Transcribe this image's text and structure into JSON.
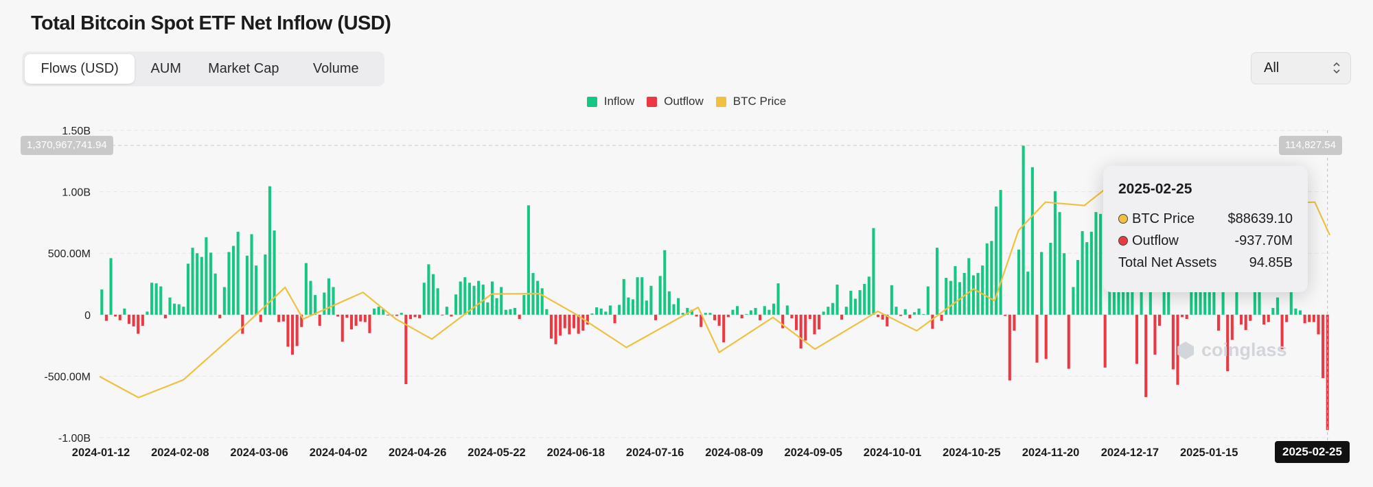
{
  "page": {
    "title": "Total Bitcoin Spot ETF Net Inflow (USD)"
  },
  "tabs": [
    {
      "label": "Flows (USD)",
      "active": true
    },
    {
      "label": "AUM",
      "active": false
    },
    {
      "label": "Market Cap",
      "active": false
    },
    {
      "label": "Volume",
      "active": false
    }
  ],
  "range_select": {
    "value": "All"
  },
  "colors": {
    "inflow": "#16c784",
    "outflow": "#ea3943",
    "btc_price": "#f0c040",
    "gridline": "#e6e6e6"
  },
  "crosshair": {
    "left_value": "1,370,967,741.94",
    "right_value": "114,827.54",
    "date": "2025-02-25"
  },
  "tooltip": {
    "date": "2025-02-25",
    "rows": [
      {
        "label": "BTC Price",
        "value": "$88639.10",
        "dot_color": "#f0c040"
      },
      {
        "label": "Outflow",
        "value": "-937.70M",
        "dot_color": "#ea3943"
      },
      {
        "label": "Total Net Assets",
        "value": "94.85B"
      }
    ]
  },
  "watermark": "coinglass",
  "chart_data": {
    "type": "bar",
    "legend": [
      "Inflow",
      "Outflow",
      "BTC Price"
    ],
    "legend_position": "top-center",
    "grid": true,
    "y_tick_labels": [
      "1.50B",
      "1.00B",
      "500.00M",
      "0",
      "-500.00M",
      "-1.00B"
    ],
    "ylim": [
      -1000000000,
      1500000000
    ],
    "x_tick_labels": [
      "2024-01-12",
      "2024-02-08",
      "2024-03-06",
      "2024-04-02",
      "2024-04-26",
      "2024-05-22",
      "2024-06-18",
      "2024-07-16",
      "2024-08-09",
      "2024-09-05",
      "2024-10-01",
      "2024-10-25",
      "2024-11-20",
      "2024-12-17",
      "2025-01-15",
      "2025-02-25"
    ],
    "x_range": [
      "2024-01-11",
      "2025-02-25"
    ],
    "flows_musd": [
      205,
      -50,
      460,
      -15,
      -45,
      50,
      -75,
      -95,
      -155,
      -90,
      25,
      260,
      255,
      230,
      -30,
      140,
      90,
      85,
      65,
      415,
      545,
      500,
      470,
      630,
      505,
      335,
      -30,
      225,
      510,
      560,
      675,
      -155,
      480,
      655,
      400,
      -60,
      490,
      1045,
      685,
      -60,
      -55,
      -260,
      -325,
      -255,
      -100,
      420,
      275,
      160,
      -90,
      180,
      295,
      225,
      -15,
      -220,
      -25,
      -120,
      -90,
      -55,
      -60,
      -150,
      50,
      65,
      45,
      -5,
      0,
      -10,
      15,
      -565,
      -35,
      -20,
      -30,
      260,
      410,
      330,
      215,
      -5,
      65,
      -15,
      165,
      270,
      305,
      260,
      235,
      275,
      245,
      100,
      270,
      135,
      225,
      40,
      45,
      55,
      -35,
      160,
      890,
      340,
      275,
      215,
      45,
      -195,
      -240,
      -170,
      -110,
      -160,
      -110,
      -155,
      -130,
      -80,
      10,
      60,
      50,
      25,
      75,
      -70,
      80,
      290,
      140,
      125,
      305,
      305,
      115,
      235,
      -45,
      315,
      525,
      190,
      85,
      135,
      15,
      55,
      40,
      -15,
      -100,
      15,
      15,
      -45,
      -90,
      -225,
      -20,
      40,
      70,
      -30,
      5,
      35,
      55,
      -45,
      70,
      40,
      90,
      255,
      -110,
      75,
      -30,
      -125,
      -275,
      -210,
      -35,
      -160,
      -120,
      25,
      65,
      95,
      245,
      -40,
      65,
      195,
      130,
      200,
      250,
      310,
      705,
      -20,
      -40,
      -95,
      240,
      65,
      -10,
      45,
      -30,
      20,
      50,
      5,
      230,
      -115,
      545,
      -50,
      300,
      275,
      395,
      265,
      340,
      460,
      320,
      340,
      400,
      580,
      600,
      880,
      1015,
      -10,
      -535,
      -130,
      530,
      1375,
      350,
      1200,
      -390,
      510,
      -360,
      585,
      1005,
      835,
      500,
      -440,
      225,
      445,
      680,
      590,
      675,
      835,
      820,
      -430,
      345,
      920,
      655,
      360,
      640,
      620,
      -400,
      270,
      -670,
      590,
      -325,
      -90,
      255,
      535,
      -445,
      -570,
      -20,
      -35,
      810,
      635,
      640,
      720,
      380,
      550,
      -130,
      485,
      -460,
      -205,
      480,
      -80,
      -125,
      -50,
      615,
      645,
      -80,
      -60,
      55,
      140,
      -280,
      -60,
      215,
      50,
      35,
      -70,
      -60,
      -60,
      -160,
      -516,
      -937.7
    ],
    "btc_price_usd_anchors": [
      {
        "date": "2024-01-11",
        "price": 46300
      },
      {
        "date": "2024-01-24",
        "price": 40000
      },
      {
        "date": "2024-02-08",
        "price": 45300
      },
      {
        "date": "2024-02-29",
        "price": 62000
      },
      {
        "date": "2024-03-13",
        "price": 73000
      },
      {
        "date": "2024-03-19",
        "price": 63500
      },
      {
        "date": "2024-04-08",
        "price": 71500
      },
      {
        "date": "2024-04-19",
        "price": 63500
      },
      {
        "date": "2024-05-01",
        "price": 57500
      },
      {
        "date": "2024-05-21",
        "price": 71000
      },
      {
        "date": "2024-06-06",
        "price": 71100
      },
      {
        "date": "2024-06-18",
        "price": 65000
      },
      {
        "date": "2024-07-05",
        "price": 55000
      },
      {
        "date": "2024-07-29",
        "price": 67000
      },
      {
        "date": "2024-08-05",
        "price": 53500
      },
      {
        "date": "2024-08-23",
        "price": 64000
      },
      {
        "date": "2024-09-06",
        "price": 54500
      },
      {
        "date": "2024-09-27",
        "price": 65800
      },
      {
        "date": "2024-10-10",
        "price": 60000
      },
      {
        "date": "2024-10-29",
        "price": 72500
      },
      {
        "date": "2024-11-05",
        "price": 69000
      },
      {
        "date": "2024-11-13",
        "price": 90000
      },
      {
        "date": "2024-11-22",
        "price": 98500
      },
      {
        "date": "2024-12-05",
        "price": 97500
      },
      {
        "date": "2024-12-17",
        "price": 106000
      },
      {
        "date": "2024-12-30",
        "price": 92500
      },
      {
        "date": "2025-01-20",
        "price": 104000
      },
      {
        "date": "2025-02-03",
        "price": 98000
      },
      {
        "date": "2025-02-20",
        "price": 98500
      },
      {
        "date": "2025-02-25",
        "price": 88639.1
      }
    ]
  }
}
